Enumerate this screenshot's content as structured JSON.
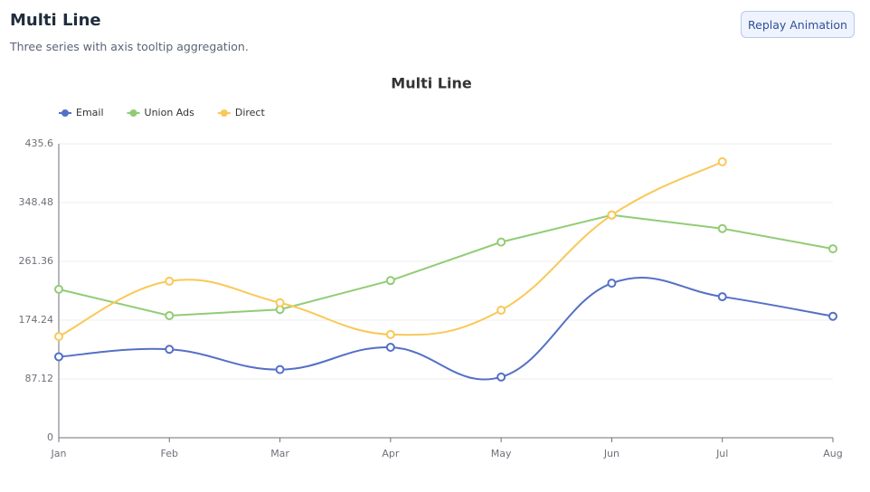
{
  "header": {
    "title": "Multi Line",
    "subtitle": "Three series with axis tooltip aggregation.",
    "button": "Replay Animation"
  },
  "chart_data": {
    "type": "line",
    "title": "Multi Line",
    "categories": [
      "Jan",
      "Feb",
      "Mar",
      "Apr",
      "May",
      "Jun",
      "Jul",
      "Aug"
    ],
    "series": [
      {
        "name": "Email",
        "color": "#5470c6",
        "smooth": true,
        "values": [
          120,
          131,
          101,
          134,
          90,
          229,
          209,
          180
        ]
      },
      {
        "name": "Union Ads",
        "color": "#91cc75",
        "smooth": false,
        "values": [
          220,
          181,
          190,
          233,
          290,
          330,
          310,
          280
        ]
      },
      {
        "name": "Direct",
        "color": "#fac858",
        "smooth": true,
        "values": [
          150,
          232,
          200,
          153,
          189,
          330,
          409,
          null
        ]
      }
    ],
    "ylim": [
      0,
      435.6
    ],
    "yticks": [
      0,
      87.12,
      174.24,
      261.36,
      348.48,
      435.6
    ],
    "grid": true,
    "legend": "top-left"
  }
}
